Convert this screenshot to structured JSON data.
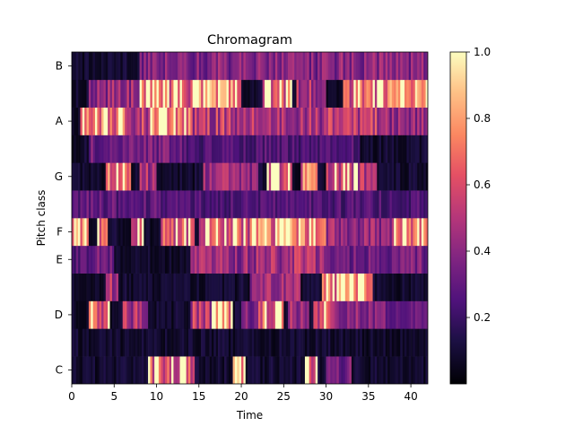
{
  "chart_data": {
    "type": "heatmap",
    "title": "Chromagram",
    "xlabel": "Time",
    "ylabel": "Pitch class",
    "xlim": [
      0,
      42
    ],
    "x_ticks": [
      0,
      5,
      10,
      15,
      20,
      25,
      30,
      35,
      40
    ],
    "pitch_classes": [
      "C",
      "C#",
      "D",
      "D#",
      "E",
      "F",
      "F#",
      "G",
      "G#",
      "A",
      "A#",
      "B"
    ],
    "y_tick_labels": [
      "C",
      "D",
      "E",
      "F",
      "G",
      "A",
      "B"
    ],
    "y_tick_pitch_index": [
      0,
      2,
      4,
      5,
      7,
      9,
      11
    ],
    "colormap": "magma",
    "colorbar": {
      "min": 0,
      "max": 1.0,
      "ticks": [
        0.2,
        0.4,
        0.6,
        0.8,
        1.0
      ],
      "tick_labels": [
        "0.2",
        "0.4",
        "0.6",
        "0.8",
        "1.0"
      ]
    },
    "time_step": 0.25,
    "segments": [
      {
        "pitch": "C",
        "start": 9,
        "end": 14.5,
        "level": 0.75
      },
      {
        "pitch": "C",
        "start": 19,
        "end": 20.5,
        "level": 0.95
      },
      {
        "pitch": "C",
        "start": 27.5,
        "end": 29,
        "level": 0.7
      },
      {
        "pitch": "C",
        "start": 30,
        "end": 33,
        "level": 0.4
      },
      {
        "pitch": "D",
        "start": 2,
        "end": 4.5,
        "level": 0.8
      },
      {
        "pitch": "D",
        "start": 6,
        "end": 9,
        "level": 0.55
      },
      {
        "pitch": "D",
        "start": 14,
        "end": 16.5,
        "level": 0.6
      },
      {
        "pitch": "D",
        "start": 16.5,
        "end": 19,
        "level": 0.85
      },
      {
        "pitch": "D",
        "start": 20,
        "end": 22,
        "level": 0.45
      },
      {
        "pitch": "D",
        "start": 22,
        "end": 25,
        "level": 0.8
      },
      {
        "pitch": "D",
        "start": 25.5,
        "end": 28,
        "level": 0.55
      },
      {
        "pitch": "D",
        "start": 28.5,
        "end": 31,
        "level": 0.75
      },
      {
        "pitch": "D",
        "start": 31,
        "end": 37,
        "level": 0.45
      },
      {
        "pitch": "D",
        "start": 37,
        "end": 42,
        "level": 0.35
      },
      {
        "pitch": "D#",
        "start": 4,
        "end": 5.5,
        "level": 0.55
      },
      {
        "pitch": "D#",
        "start": 21,
        "end": 27,
        "level": 0.5
      },
      {
        "pitch": "D#",
        "start": 29.5,
        "end": 35.5,
        "level": 0.92
      },
      {
        "pitch": "E",
        "start": 0,
        "end": 2.5,
        "level": 0.3
      },
      {
        "pitch": "E",
        "start": 2.5,
        "end": 5,
        "level": 0.4
      },
      {
        "pitch": "E",
        "start": 14,
        "end": 22,
        "level": 0.5
      },
      {
        "pitch": "E",
        "start": 22,
        "end": 30,
        "level": 0.55
      },
      {
        "pitch": "E",
        "start": 30,
        "end": 42,
        "level": 0.4
      },
      {
        "pitch": "F",
        "start": 0,
        "end": 2,
        "level": 1.0
      },
      {
        "pitch": "F",
        "start": 3,
        "end": 4.2,
        "level": 0.85
      },
      {
        "pitch": "F",
        "start": 7,
        "end": 8.5,
        "level": 0.7
      },
      {
        "pitch": "F",
        "start": 10.5,
        "end": 14.5,
        "level": 0.8
      },
      {
        "pitch": "F",
        "start": 15,
        "end": 22,
        "level": 0.75
      },
      {
        "pitch": "F",
        "start": 22,
        "end": 30,
        "level": 0.9
      },
      {
        "pitch": "F",
        "start": 30,
        "end": 38,
        "level": 0.5
      },
      {
        "pitch": "F",
        "start": 38,
        "end": 42,
        "level": 0.8
      },
      {
        "pitch": "F#",
        "start": 0,
        "end": 10,
        "level": 0.35
      },
      {
        "pitch": "F#",
        "start": 10,
        "end": 42,
        "level": 0.3
      },
      {
        "pitch": "G",
        "start": 4,
        "end": 7,
        "level": 0.85
      },
      {
        "pitch": "G",
        "start": 8,
        "end": 10,
        "level": 0.55
      },
      {
        "pitch": "G",
        "start": 15.5,
        "end": 22,
        "level": 0.5
      },
      {
        "pitch": "G",
        "start": 23,
        "end": 26,
        "level": 0.7
      },
      {
        "pitch": "G",
        "start": 27,
        "end": 29,
        "level": 0.9
      },
      {
        "pitch": "G",
        "start": 30,
        "end": 36,
        "level": 0.65
      },
      {
        "pitch": "G#",
        "start": 2,
        "end": 13,
        "level": 0.4
      },
      {
        "pitch": "G#",
        "start": 13,
        "end": 34,
        "level": 0.3
      },
      {
        "pitch": "A",
        "start": 1,
        "end": 6.5,
        "level": 0.85
      },
      {
        "pitch": "A",
        "start": 6.5,
        "end": 9,
        "level": 0.6
      },
      {
        "pitch": "A",
        "start": 9,
        "end": 14,
        "level": 0.85
      },
      {
        "pitch": "A",
        "start": 14,
        "end": 22,
        "level": 0.6
      },
      {
        "pitch": "A",
        "start": 22,
        "end": 30,
        "level": 0.55
      },
      {
        "pitch": "A",
        "start": 30,
        "end": 36,
        "level": 0.6
      },
      {
        "pitch": "A",
        "start": 36,
        "end": 42,
        "level": 0.5
      },
      {
        "pitch": "A#",
        "start": 2,
        "end": 8,
        "level": 0.5
      },
      {
        "pitch": "A#",
        "start": 8,
        "end": 15,
        "level": 0.75
      },
      {
        "pitch": "A#",
        "start": 15,
        "end": 20,
        "level": 0.92
      },
      {
        "pitch": "A#",
        "start": 22.5,
        "end": 26,
        "level": 0.8
      },
      {
        "pitch": "A#",
        "start": 26.5,
        "end": 30,
        "level": 0.55
      },
      {
        "pitch": "A#",
        "start": 32,
        "end": 36.5,
        "level": 0.8
      },
      {
        "pitch": "A#",
        "start": 36.5,
        "end": 42,
        "level": 0.98
      },
      {
        "pitch": "B",
        "start": 8,
        "end": 42,
        "level": 0.45
      }
    ]
  }
}
